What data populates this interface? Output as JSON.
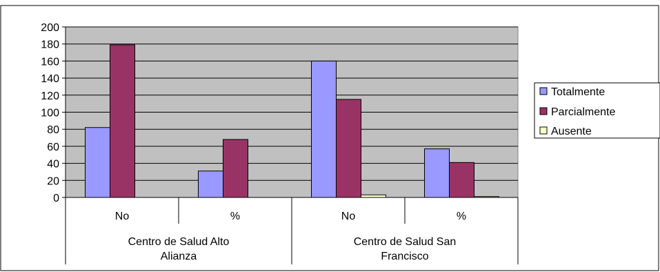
{
  "chart_data": {
    "type": "bar",
    "title": "",
    "xlabel": "",
    "ylabel": "",
    "ylim": [
      0,
      200
    ],
    "ytick_step": 20,
    "grid": true,
    "legend_position": "right",
    "plot_background": "#C0C0C0",
    "categories": [
      "No",
      "%",
      "No",
      "%"
    ],
    "groups": [
      {
        "label_lines": [
          "Centro de Salud Alto",
          "Alianza"
        ],
        "span": [
          0,
          1
        ]
      },
      {
        "label_lines": [
          "Centro de Salud San",
          "Francisco"
        ],
        "span": [
          2,
          3
        ]
      }
    ],
    "series": [
      {
        "name": "Totalmente",
        "color": "#9999FF",
        "values": [
          82,
          31,
          160,
          57
        ]
      },
      {
        "name": "Parcialmente",
        "color": "#993366",
        "values": [
          179,
          68,
          115,
          41
        ]
      },
      {
        "name": "Ausente",
        "color": "#FFFFCC",
        "values": [
          0,
          0,
          3,
          1
        ]
      }
    ]
  }
}
